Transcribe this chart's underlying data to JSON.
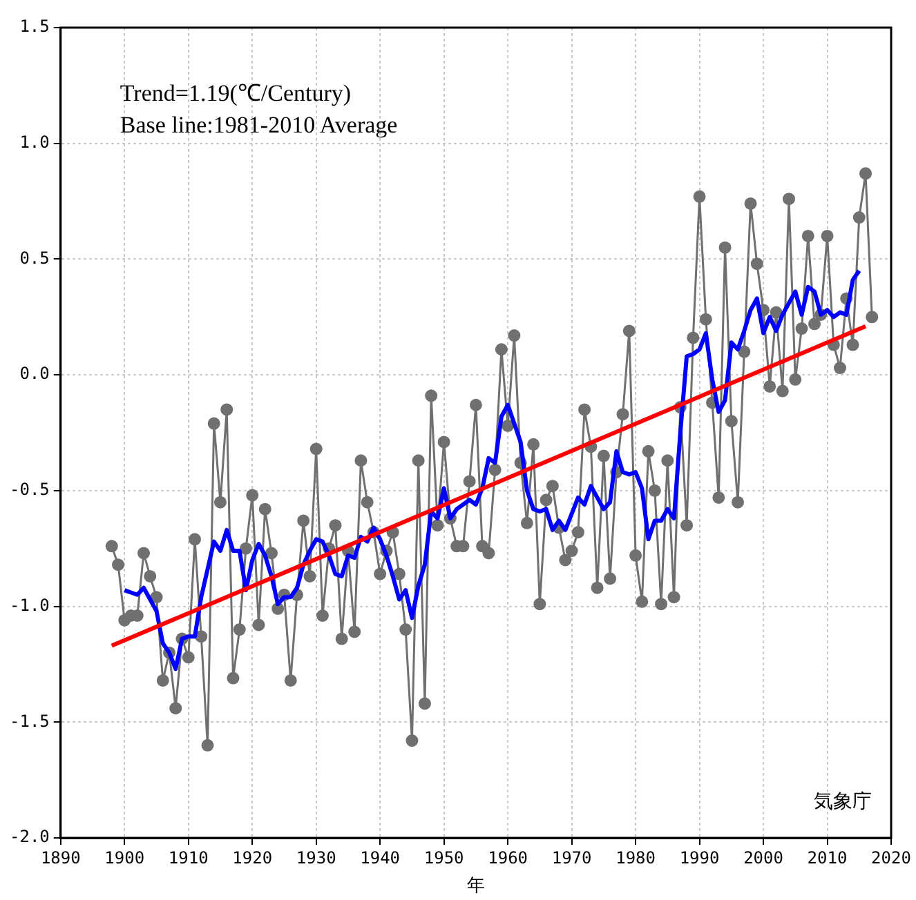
{
  "chart_data": {
    "type": "line",
    "xlabel": "年",
    "annotations": [
      "Trend=1.19(℃/Century)\nBase line:1981-2010 Average",
      "気象庁"
    ],
    "xlim": [
      1890,
      2020
    ],
    "xticks": [
      1890,
      1900,
      1910,
      1920,
      1930,
      1940,
      1950,
      1960,
      1970,
      1980,
      1990,
      2000,
      2010,
      2020
    ],
    "ylim": [
      -2.0,
      1.5
    ],
    "yticks": [
      {
        "value": -2,
        "label": "-2.0"
      },
      {
        "value": -1.5,
        "label": "-1.5"
      },
      {
        "value": -1,
        "label": "-1.0"
      },
      {
        "value": -0.5,
        "label": "-0.5"
      },
      {
        "value": 0,
        "label": "0.0"
      },
      {
        "value": 0.5,
        "label": "0.5"
      },
      {
        "value": 1,
        "label": "1.0"
      },
      {
        "value": 1.5,
        "label": "1.5"
      }
    ],
    "grid": true,
    "legend": false,
    "line_style": "solid",
    "series": [
      {
        "color": "#707070",
        "marker": "circle",
        "x": [
          1898,
          1899,
          1900,
          1901,
          1902,
          1903,
          1904,
          1905,
          1906,
          1907,
          1908,
          1909,
          1910,
          1911,
          1912,
          1913,
          1914,
          1915,
          1916,
          1917,
          1918,
          1919,
          1920,
          1921,
          1922,
          1923,
          1924,
          1925,
          1926,
          1927,
          1928,
          1929,
          1930,
          1931,
          1932,
          1933,
          1934,
          1935,
          1936,
          1937,
          1938,
          1939,
          1940,
          1941,
          1942,
          1943,
          1944,
          1945,
          1946,
          1947,
          1948,
          1949,
          1950,
          1951,
          1952,
          1953,
          1954,
          1955,
          1956,
          1957,
          1958,
          1959,
          1960,
          1961,
          1962,
          1963,
          1964,
          1965,
          1966,
          1967,
          1968,
          1969,
          1970,
          1971,
          1972,
          1973,
          1974,
          1975,
          1976,
          1977,
          1978,
          1979,
          1980,
          1981,
          1982,
          1983,
          1984,
          1985,
          1986,
          1987,
          1988,
          1989,
          1990,
          1991,
          1992,
          1993,
          1994,
          1995,
          1996,
          1997,
          1998,
          1999,
          2000,
          2001,
          2002,
          2003,
          2004,
          2005,
          2006,
          2007,
          2008,
          2009,
          2010,
          2011,
          2012,
          2013,
          2014,
          2015,
          2016,
          2017
        ],
        "values": [
          -0.74,
          -0.82,
          -1.06,
          -1.04,
          -1.04,
          -0.77,
          -0.87,
          -0.96,
          -1.32,
          -1.2,
          -1.44,
          -1.14,
          -1.22,
          -0.71,
          -1.13,
          -1.6,
          -0.21,
          -0.55,
          -0.15,
          -1.31,
          -1.1,
          -0.75,
          -0.52,
          -1.08,
          -0.58,
          -0.77,
          -1.01,
          -0.95,
          -1.32,
          -0.95,
          -0.63,
          -0.87,
          -0.32,
          -1.04,
          -0.75,
          -0.65,
          -1.14,
          -0.76,
          -1.11,
          -0.37,
          -0.55,
          -0.68,
          -0.86,
          -0.76,
          -0.68,
          -0.86,
          -1.1,
          -1.58,
          -0.37,
          -1.42,
          -0.09,
          -0.65,
          -0.29,
          -0.62,
          -0.74,
          -0.74,
          -0.46,
          -0.13,
          -0.74,
          -0.77,
          -0.41,
          0.11,
          -0.22,
          0.17,
          -0.38,
          -0.64,
          -0.3,
          -0.99,
          -0.54,
          -0.48,
          -0.66,
          -0.8,
          -0.76,
          -0.68,
          -0.15,
          -0.31,
          -0.92,
          -0.35,
          -0.88,
          -0.42,
          -0.17,
          0.19,
          -0.78,
          -0.98,
          -0.33,
          -0.5,
          -0.99,
          -0.37,
          -0.96,
          -0.14,
          -0.65,
          0.16,
          0.77,
          0.24,
          -0.12,
          -0.53,
          0.55,
          -0.2,
          -0.55,
          0.1,
          0.74,
          0.48,
          0.28,
          -0.05,
          0.27,
          -0.07,
          0.76,
          -0.02,
          0.2,
          0.6,
          0.22,
          0.26,
          0.6,
          0.13,
          0.03,
          0.33,
          0.13,
          0.68,
          0.87,
          0.25
        ]
      },
      {
        "color": "#0000ff",
        "marker": "none",
        "x": [
          1900,
          1901,
          1902,
          1903,
          1904,
          1905,
          1906,
          1907,
          1908,
          1909,
          1910,
          1911,
          1912,
          1913,
          1914,
          1915,
          1916,
          1917,
          1918,
          1919,
          1920,
          1921,
          1922,
          1923,
          1924,
          1925,
          1926,
          1927,
          1928,
          1929,
          1930,
          1931,
          1932,
          1933,
          1934,
          1935,
          1936,
          1937,
          1938,
          1939,
          1940,
          1941,
          1942,
          1943,
          1944,
          1945,
          1946,
          1947,
          1948,
          1949,
          1950,
          1951,
          1952,
          1953,
          1954,
          1955,
          1956,
          1957,
          1958,
          1959,
          1960,
          1961,
          1962,
          1963,
          1964,
          1965,
          1966,
          1967,
          1968,
          1969,
          1970,
          1971,
          1972,
          1973,
          1974,
          1975,
          1976,
          1977,
          1978,
          1979,
          1980,
          1981,
          1982,
          1983,
          1984,
          1985,
          1986,
          1987,
          1988,
          1989,
          1990,
          1991,
          1992,
          1993,
          1994,
          1995,
          1996,
          1997,
          1998,
          1999,
          2000,
          2001,
          2002,
          2003,
          2004,
          2005,
          2006,
          2007,
          2008,
          2009,
          2010,
          2011,
          2012,
          2013,
          2014,
          2015
        ],
        "values": [
          -0.93,
          -0.94,
          -0.95,
          -0.92,
          -0.97,
          -1.02,
          -1.16,
          -1.2,
          -1.27,
          -1.14,
          -1.13,
          -1.13,
          -0.96,
          -0.84,
          -0.72,
          -0.76,
          -0.67,
          -0.76,
          -0.76,
          -0.93,
          -0.8,
          -0.73,
          -0.78,
          -0.87,
          -0.99,
          -0.96,
          -0.96,
          -0.92,
          -0.82,
          -0.76,
          -0.71,
          -0.72,
          -0.78,
          -0.86,
          -0.87,
          -0.78,
          -0.79,
          -0.7,
          -0.72,
          -0.66,
          -0.71,
          -0.78,
          -0.87,
          -0.97,
          -0.93,
          -1.05,
          -0.91,
          -0.82,
          -0.59,
          -0.62,
          -0.49,
          -0.62,
          -0.58,
          -0.56,
          -0.54,
          -0.56,
          -0.49,
          -0.36,
          -0.38,
          -0.18,
          -0.13,
          -0.21,
          -0.29,
          -0.5,
          -0.58,
          -0.59,
          -0.58,
          -0.67,
          -0.63,
          -0.67,
          -0.6,
          -0.53,
          -0.56,
          -0.48,
          -0.53,
          -0.58,
          -0.55,
          -0.33,
          -0.42,
          -0.43,
          -0.42,
          -0.49,
          -0.71,
          -0.63,
          -0.63,
          -0.58,
          -0.62,
          -0.25,
          0.08,
          0.09,
          0.11,
          0.18,
          -0.02,
          -0.16,
          -0.11,
          0.14,
          0.11,
          0.19,
          0.28,
          0.33,
          0.18,
          0.25,
          0.19,
          0.26,
          0.31,
          0.36,
          0.26,
          0.38,
          0.36,
          0.26,
          0.28,
          0.25,
          0.27,
          0.26,
          0.41,
          0.45
        ]
      },
      {
        "color": "#ff0000",
        "marker": "none",
        "x": [
          1898,
          2016
        ],
        "values": [
          -1.17,
          0.21
        ]
      }
    ]
  }
}
